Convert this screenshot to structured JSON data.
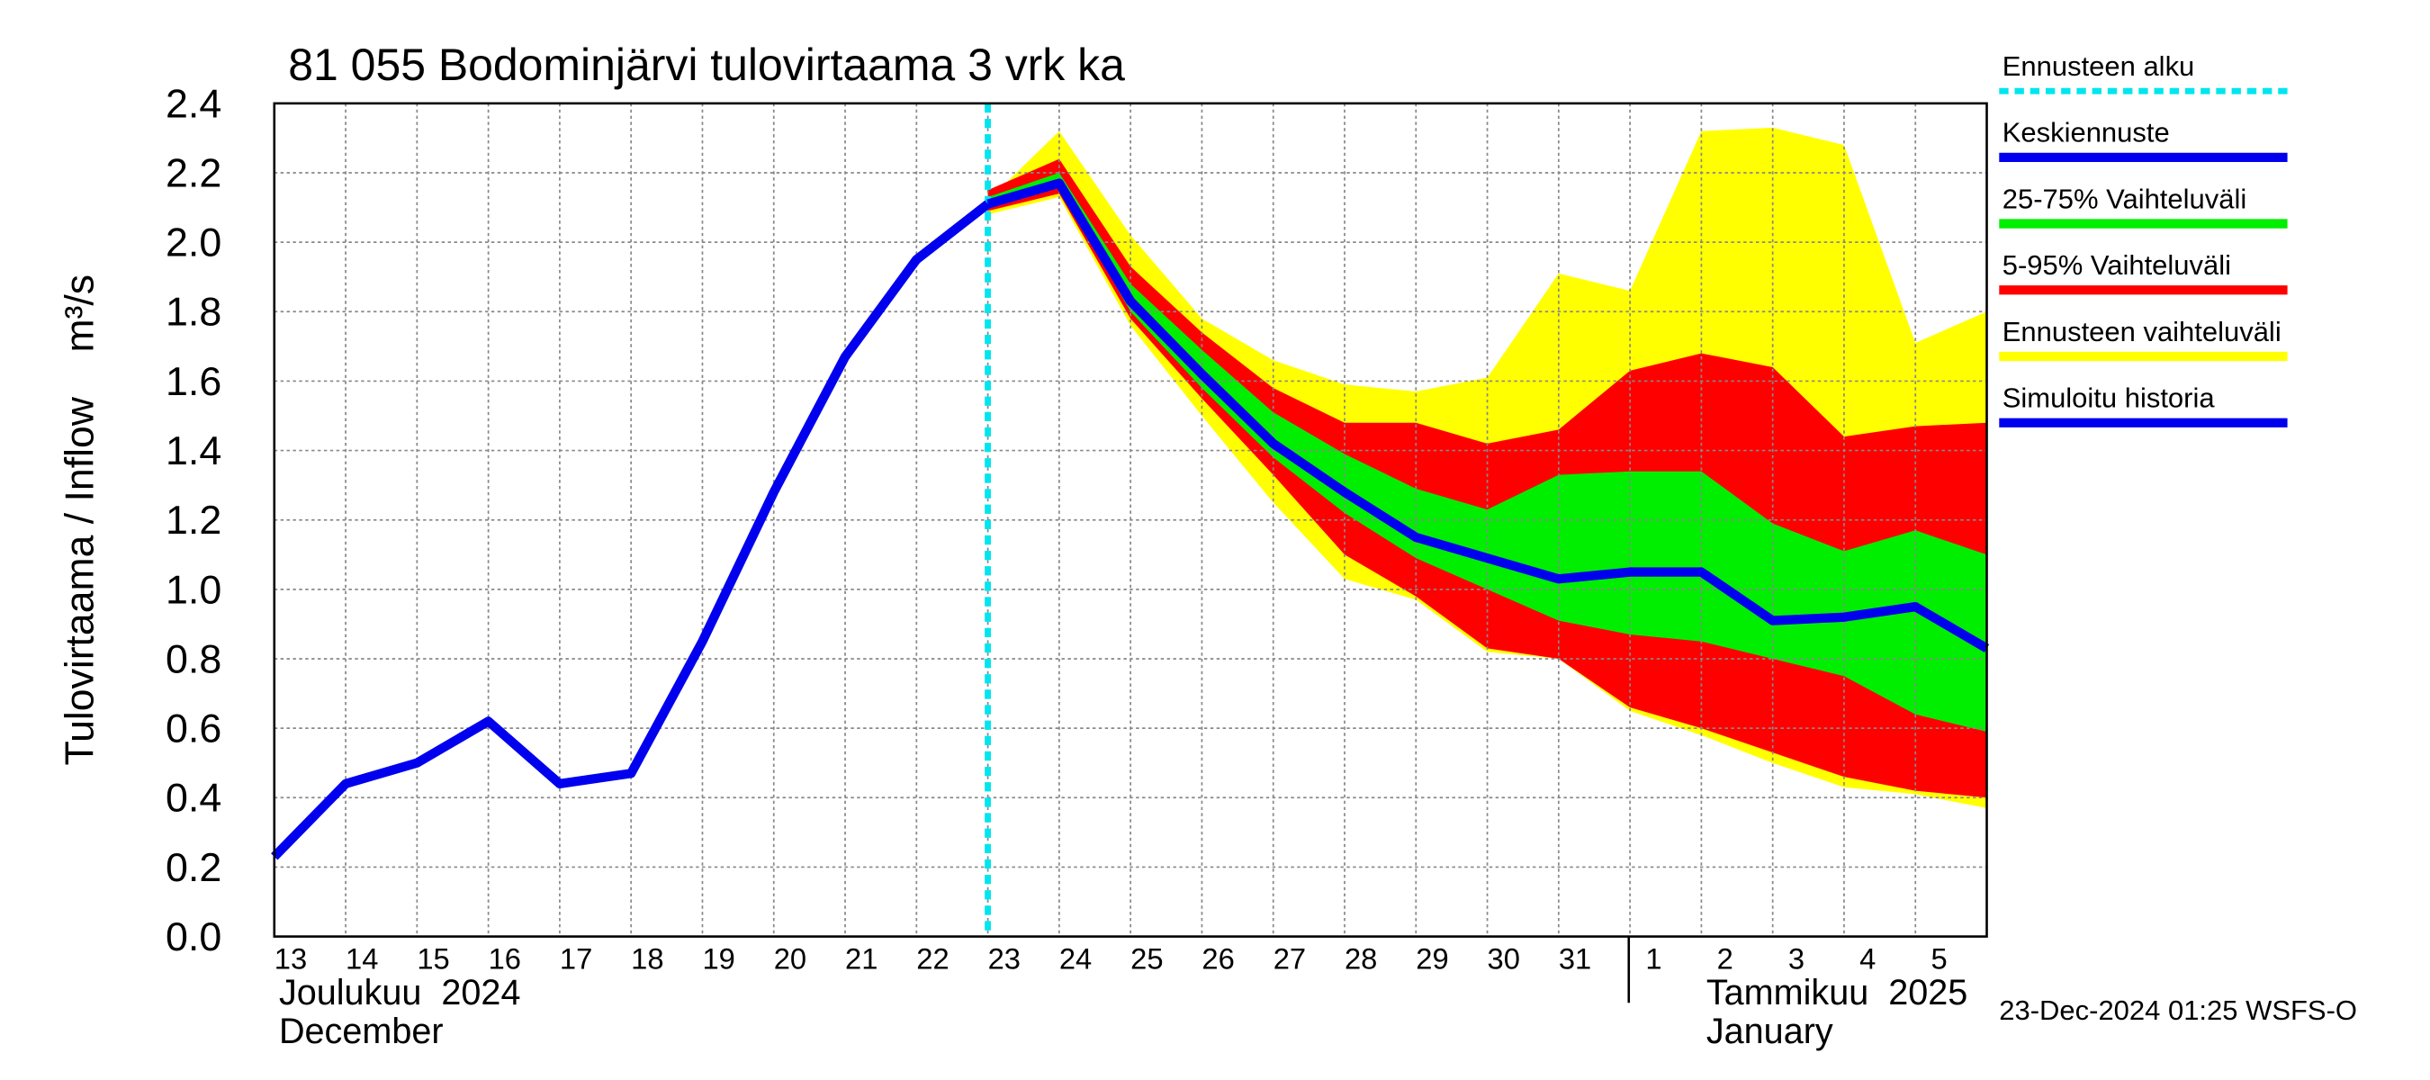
{
  "chart_data": {
    "type": "band-forecast",
    "title": "81 055 Bodominjärvi tulovirtaama 3 vrk ka",
    "y_label": "Tulovirtaama / Inflow    m³/s",
    "categories": [
      "13",
      "14",
      "15",
      "16",
      "17",
      "18",
      "19",
      "20",
      "21",
      "22",
      "23",
      "24",
      "25",
      "26",
      "27",
      "28",
      "29",
      "30",
      "31",
      "1",
      "2",
      "3",
      "4",
      "5",
      null
    ],
    "month_labels": [
      [
        "Joulukuu  2024",
        "December"
      ],
      [
        "Tammikuu  2025",
        "January"
      ]
    ],
    "ylim": [
      0,
      2.4
    ],
    "yticks": [
      {
        "value": 0,
        "label": "0.0"
      },
      0.2,
      0.4,
      0.6,
      0.8,
      {
        "value": 1,
        "label": "1.0"
      },
      1.2,
      1.4,
      1.6,
      1.8,
      {
        "value": 2,
        "label": "2.0"
      },
      2.2,
      2.4
    ],
    "grid": true,
    "timestamp": "23-Dec-2024 01:25 WSFS-O",
    "series": [
      {
        "name": "Ennusteen alku",
        "color": "#00e5ee",
        "kind": "vline",
        "category": "23"
      },
      {
        "name": "Keskiennuste",
        "color": "#0000ee",
        "kind": "line",
        "values": [
          null,
          null,
          null,
          null,
          null,
          null,
          null,
          null,
          null,
          null,
          2.11,
          2.17,
          1.83,
          1.62,
          1.42,
          1.28,
          1.15,
          1.09,
          1.03,
          1.05,
          1.05,
          0.91,
          0.92,
          0.95,
          0.83
        ]
      },
      {
        "name": "25-75% Vaihteluväli",
        "color": "#00ee00",
        "kind": "band",
        "high": [
          null,
          null,
          null,
          null,
          null,
          null,
          null,
          null,
          null,
          null,
          2.13,
          2.2,
          1.88,
          1.69,
          1.51,
          1.39,
          1.29,
          1.23,
          1.33,
          1.34,
          1.34,
          1.19,
          1.11,
          1.17,
          1.1
        ],
        "low": [
          null,
          null,
          null,
          null,
          null,
          null,
          null,
          null,
          null,
          null,
          2.1,
          2.16,
          1.8,
          1.58,
          1.38,
          1.22,
          1.09,
          1.0,
          0.91,
          0.87,
          0.85,
          0.8,
          0.75,
          0.64,
          0.59
        ]
      },
      {
        "name": "5-95% Vaihteluväli",
        "color": "#ff0000",
        "kind": "band",
        "high": [
          null,
          null,
          null,
          null,
          null,
          null,
          null,
          null,
          null,
          null,
          2.15,
          2.24,
          1.93,
          1.74,
          1.58,
          1.48,
          1.48,
          1.42,
          1.46,
          1.63,
          1.68,
          1.64,
          1.44,
          1.47,
          1.48
        ],
        "low": [
          null,
          null,
          null,
          null,
          null,
          null,
          null,
          null,
          null,
          null,
          2.09,
          2.14,
          1.78,
          1.55,
          1.33,
          1.1,
          0.98,
          0.83,
          0.8,
          0.66,
          0.6,
          0.53,
          0.46,
          0.42,
          0.4
        ]
      },
      {
        "name": "Ennusteen vaihteluväli",
        "color": "#ffff00",
        "kind": "band",
        "high": [
          null,
          null,
          null,
          null,
          null,
          null,
          null,
          null,
          null,
          null,
          2.12,
          2.32,
          2.02,
          1.78,
          1.66,
          1.59,
          1.57,
          1.61,
          1.91,
          1.86,
          2.32,
          2.33,
          2.28,
          1.71,
          1.8
        ],
        "low": [
          null,
          null,
          null,
          null,
          null,
          null,
          null,
          null,
          null,
          null,
          2.08,
          2.13,
          1.76,
          1.5,
          1.25,
          1.03,
          0.97,
          0.82,
          0.8,
          0.65,
          0.58,
          0.5,
          0.43,
          0.41,
          0.37
        ]
      },
      {
        "name": "Simuloitu historia",
        "color": "#0000ee",
        "kind": "line",
        "values": [
          0.23,
          0.44,
          0.5,
          0.62,
          0.44,
          0.47,
          0.85,
          1.28,
          1.67,
          1.95,
          2.11,
          null,
          null,
          null,
          null,
          null,
          null,
          null,
          null,
          null,
          null,
          null,
          null,
          null,
          null
        ]
      }
    ]
  }
}
